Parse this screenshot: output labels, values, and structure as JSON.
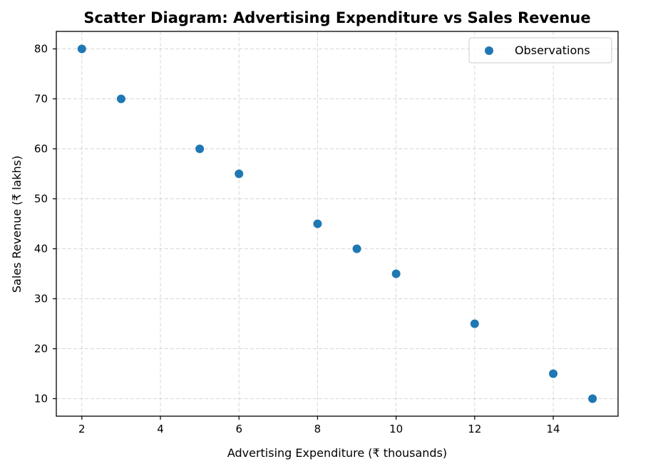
{
  "chart_data": {
    "type": "scatter",
    "title": "Scatter Diagram: Advertising Expenditure vs Sales Revenue",
    "xlabel": "Advertising Expenditure (₹ thousands)",
    "ylabel": "Sales Revenue (₹ lakhs)",
    "xlim": [
      1.35,
      15.65
    ],
    "ylim": [
      6.5,
      83.5
    ],
    "x_ticks": [
      2,
      4,
      6,
      8,
      10,
      12,
      14
    ],
    "y_ticks": [
      10,
      20,
      30,
      40,
      50,
      60,
      70,
      80
    ],
    "grid": true,
    "grid_style": "dashed",
    "legend_position": "top-right",
    "series": [
      {
        "name": "Observations",
        "color": "#1f77b4",
        "x": [
          2,
          3,
          5,
          6,
          8,
          9,
          10,
          12,
          14,
          15
        ],
        "y": [
          80,
          70,
          60,
          55,
          45,
          40,
          35,
          25,
          15,
          10
        ]
      }
    ]
  }
}
